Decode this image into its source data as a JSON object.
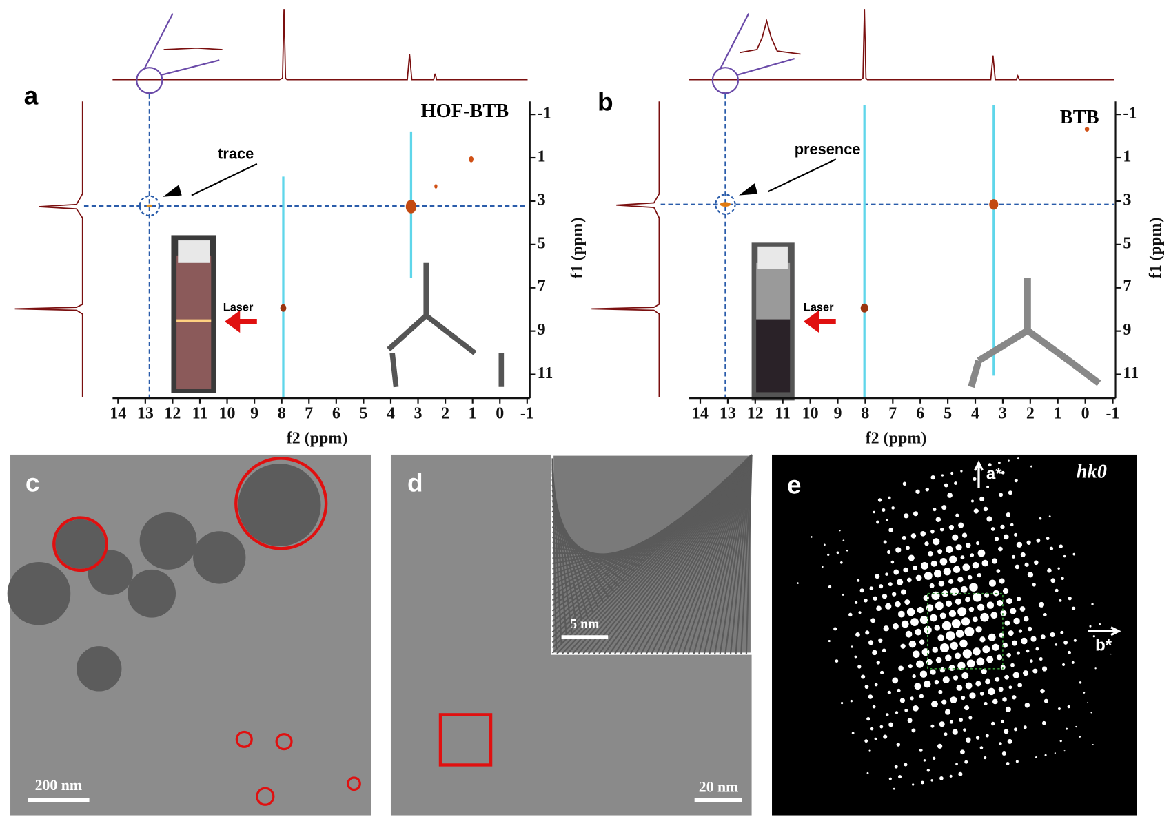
{
  "panels": [
    {
      "label": "a",
      "title": "HOF-BTB",
      "annotation": "trace",
      "inset_label": "Laser",
      "x_axis": {
        "label": "f2 (ppm)",
        "lim": [
          14.2,
          -1.1
        ],
        "ticks": [
          14,
          13,
          12,
          11,
          10,
          9,
          8,
          7,
          6,
          5,
          4,
          3,
          2,
          1,
          0,
          -1
        ]
      },
      "y_axis": {
        "label": "f1 (ppm)",
        "lim": [
          -1.6,
          12.1
        ],
        "ticks": [
          -1,
          1,
          3,
          5,
          7,
          9,
          11
        ]
      }
    },
    {
      "label": "b",
      "title": "BTB",
      "annotation": "presence",
      "inset_label": "Laser",
      "x_axis": {
        "label": "f2 (ppm)",
        "lim": [
          14.4,
          -1.1
        ],
        "ticks": [
          14,
          13,
          12,
          11,
          10,
          9,
          8,
          7,
          6,
          5,
          4,
          3,
          2,
          1,
          0,
          -1
        ]
      },
      "y_axis": {
        "label": "f1 (ppm)",
        "lim": [
          -1.6,
          12.1
        ],
        "ticks": [
          -1,
          1,
          3,
          5,
          7,
          9,
          11
        ]
      }
    },
    {
      "label": "c",
      "scale_bar": "200 nm"
    },
    {
      "label": "d",
      "scale_bar": "20 nm",
      "inset_scale_bar": "5 nm"
    },
    {
      "label": "e",
      "title": "hk0",
      "axis_labels": [
        "a*",
        "b*"
      ]
    }
  ]
}
